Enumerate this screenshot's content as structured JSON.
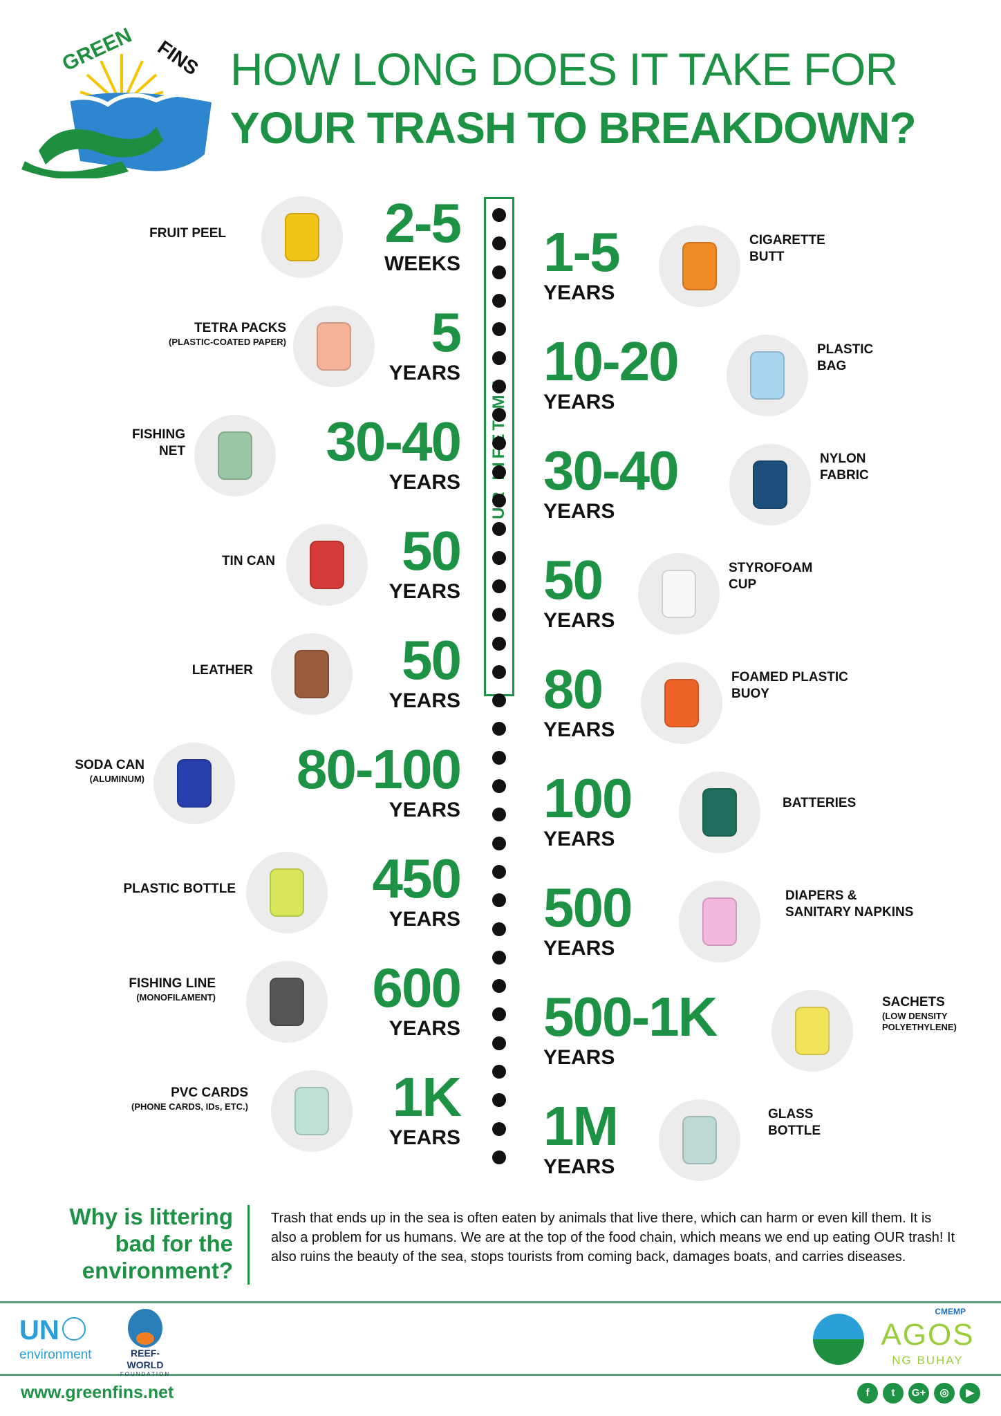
{
  "logo": {
    "text": "GREEN FINS"
  },
  "header": {
    "line1": "HOW LONG DOES IT TAKE FOR",
    "line2": "YOUR TRASH TO BREAKDOWN?"
  },
  "timeline": {
    "label": "OUR LIFETIME"
  },
  "left_items": [
    {
      "label": "FRUIT PEEL",
      "sub": "",
      "value": "2-5",
      "unit": "WEEKS",
      "icon": "banana-peel-icon",
      "color": "#f2c417"
    },
    {
      "label": "TETRA PACKS",
      "sub": "(PLASTIC-COATED PAPER)",
      "value": "5",
      "unit": "YEARS",
      "icon": "milk-carton-icon",
      "color": "#f6b39a"
    },
    {
      "label": "FISHING",
      "sub": "",
      "label2": "NET",
      "value": "30-40",
      "unit": "YEARS",
      "icon": "fishing-net-icon",
      "color": "#9bc7a6"
    },
    {
      "label": "TIN CAN",
      "sub": "",
      "value": "50",
      "unit": "YEARS",
      "icon": "tin-can-icon",
      "color": "#d43b36"
    },
    {
      "label": "LEATHER",
      "sub": "",
      "value": "50",
      "unit": "YEARS",
      "icon": "leather-shoe-icon",
      "color": "#9a5a3c"
    },
    {
      "label": "SODA CAN",
      "sub": "(ALUMINUM)",
      "value": "80-100",
      "unit": "YEARS",
      "icon": "soda-can-icon",
      "color": "#2a3fae"
    },
    {
      "label": "PLASTIC BOTTLE",
      "sub": "",
      "value": "450",
      "unit": "YEARS",
      "icon": "plastic-bottle-icon",
      "color": "#d8e85a"
    },
    {
      "label": "FISHING LINE",
      "sub": "(MONOFILAMENT)",
      "value": "600",
      "unit": "YEARS",
      "icon": "fishing-line-icon",
      "color": "#555555"
    },
    {
      "label": "PVC CARDS",
      "sub": "(PHONE CARDS, IDs, ETC.)",
      "value": "1K",
      "unit": "YEARS",
      "icon": "pvc-cards-icon",
      "color": "#bfe0d6"
    }
  ],
  "right_items": [
    {
      "label": "CIGARETTE",
      "label2": "BUTT",
      "sub": "",
      "value": "1-5",
      "unit": "YEARS",
      "icon": "cigarette-butt-icon",
      "color": "#f08a24"
    },
    {
      "label": "PLASTIC",
      "label2": "BAG",
      "sub": "",
      "value": "10-20",
      "unit": "YEARS",
      "icon": "plastic-bag-icon",
      "color": "#a9d6ef"
    },
    {
      "label": "NYLON",
      "label2": "FABRIC",
      "sub": "",
      "value": "30-40",
      "unit": "YEARS",
      "icon": "nylon-fabric-icon",
      "color": "#1d4f7c"
    },
    {
      "label": "STYROFOAM",
      "label2": "CUP",
      "sub": "",
      "value": "50",
      "unit": "YEARS",
      "icon": "styrofoam-cup-icon",
      "color": "#f7f7f7"
    },
    {
      "label": "FOAMED PLASTIC",
      "label2": "BUOY",
      "sub": "",
      "value": "80",
      "unit": "YEARS",
      "icon": "buoy-icon",
      "color": "#f0642a"
    },
    {
      "label": "BATTERIES",
      "sub": "",
      "value": "100",
      "unit": "YEARS",
      "icon": "batteries-icon",
      "color": "#1e6f5c"
    },
    {
      "label": "DIAPERS &",
      "label2": "SANITARY NAPKINS",
      "sub": "",
      "value": "500",
      "unit": "YEARS",
      "icon": "diaper-icon",
      "color": "#f3b6de"
    },
    {
      "label": "SACHETS",
      "sub": "(LOW DENSITY",
      "sub2": "POLYETHYLENE)",
      "value": "500-1K",
      "unit": "YEARS",
      "icon": "sachet-icon",
      "color": "#f3e35a"
    },
    {
      "label": "GLASS",
      "label2": "BOTTLE",
      "sub": "",
      "value": "1M",
      "unit": "YEARS",
      "icon": "glass-bottle-icon",
      "color": "#bcd9d6"
    }
  ],
  "footer": {
    "question": [
      "Why is littering",
      "bad for the",
      "environment?"
    ],
    "answer": "Trash that ends up in the sea is often eaten by animals that live there, which can harm or even kill them. It is also a problem for us humans. We are at the top of the food chain, which means we end up eating OUR trash! It also ruins the beauty of the sea, stops tourists from coming back, damages boats, and carries diseases.",
    "partners": {
      "un": "UN",
      "un_sub": "environment",
      "reefworld": "REEF-WORLD",
      "reefworld_sub": "FOUNDATION",
      "agos": "AGOS",
      "agos_top": "CMEMP",
      "agos_sub": "NG BUHAY"
    },
    "website": "www.greenfins.net",
    "social": [
      {
        "name": "facebook",
        "glyph": "f"
      },
      {
        "name": "twitter",
        "glyph": "t"
      },
      {
        "name": "google-plus",
        "glyph": "G+"
      },
      {
        "name": "instagram",
        "glyph": "◎"
      },
      {
        "name": "youtube",
        "glyph": "▶"
      }
    ]
  },
  "colors": {
    "green": "#1d9245",
    "rule": "#5a9e7a"
  }
}
